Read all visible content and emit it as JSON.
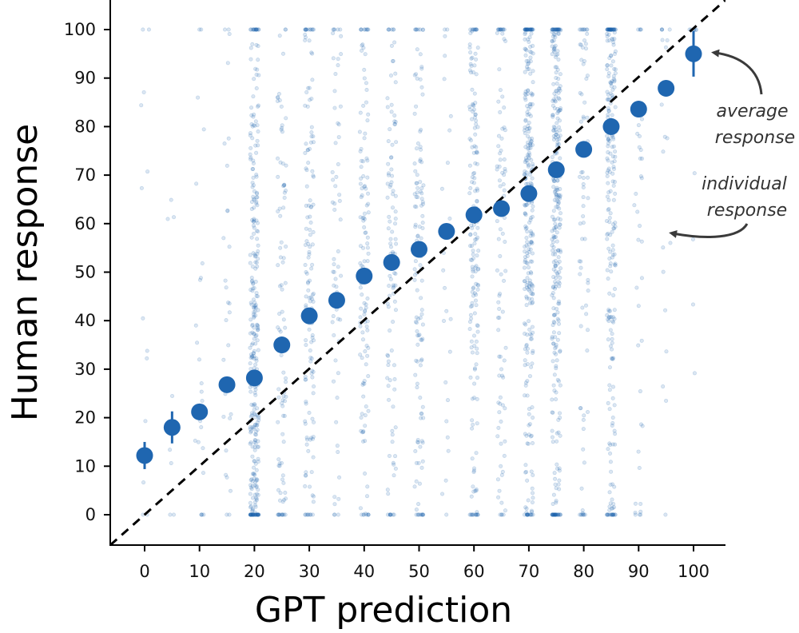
{
  "chart_data": {
    "type": "scatter",
    "xlabel": "GPT prediction",
    "ylabel": "Human response",
    "xlim": [
      0,
      100
    ],
    "ylim": [
      0,
      100
    ],
    "xticks": [
      0,
      10,
      20,
      30,
      40,
      50,
      60,
      70,
      80,
      90,
      100
    ],
    "yticks": [
      0,
      10,
      20,
      30,
      40,
      50,
      60,
      70,
      80,
      90,
      100
    ],
    "grid": false,
    "reference_line": {
      "style": "dashed",
      "slope": 1,
      "intercept": 0,
      "color": "#000000"
    },
    "series": [
      {
        "kind": "mean_with_error",
        "color": "#1f66b0",
        "x": [
          0,
          5,
          10,
          15,
          20,
          25,
          30,
          35,
          40,
          45,
          50,
          55,
          60,
          65,
          70,
          75,
          80,
          85,
          90,
          95,
          100
        ],
        "y": [
          12.2,
          18.0,
          21.2,
          26.8,
          28.2,
          35.0,
          41.0,
          44.2,
          49.2,
          52.0,
          54.7,
          58.4,
          61.8,
          63.1,
          66.2,
          71.1,
          75.3,
          80.0,
          83.6,
          87.9,
          95.0
        ],
        "err": [
          2.8,
          3.3,
          1.2,
          1.0,
          0.7,
          1.0,
          0.9,
          1.0,
          0.8,
          1.0,
          0.7,
          1.6,
          0.7,
          1.0,
          0.5,
          0.5,
          0.9,
          0.6,
          1.2,
          1.5,
          4.7
        ]
      },
      {
        "kind": "individual_jittered",
        "color": "#1f66b0",
        "x": [
          0,
          5,
          10,
          15,
          20,
          25,
          30,
          35,
          40,
          45,
          50,
          55,
          60,
          65,
          70,
          75,
          80,
          85,
          90,
          95,
          100
        ],
        "relative_density": [
          4,
          3,
          8,
          9,
          100,
          30,
          45,
          20,
          40,
          35,
          42,
          8,
          55,
          30,
          95,
          100,
          25,
          80,
          12,
          6,
          3
        ]
      }
    ],
    "annotations": [
      {
        "text": [
          "average",
          "response"
        ],
        "points_to": "average response marker at x=100"
      },
      {
        "text": [
          "individual",
          "response"
        ],
        "points_to": "individual response dots"
      }
    ]
  }
}
